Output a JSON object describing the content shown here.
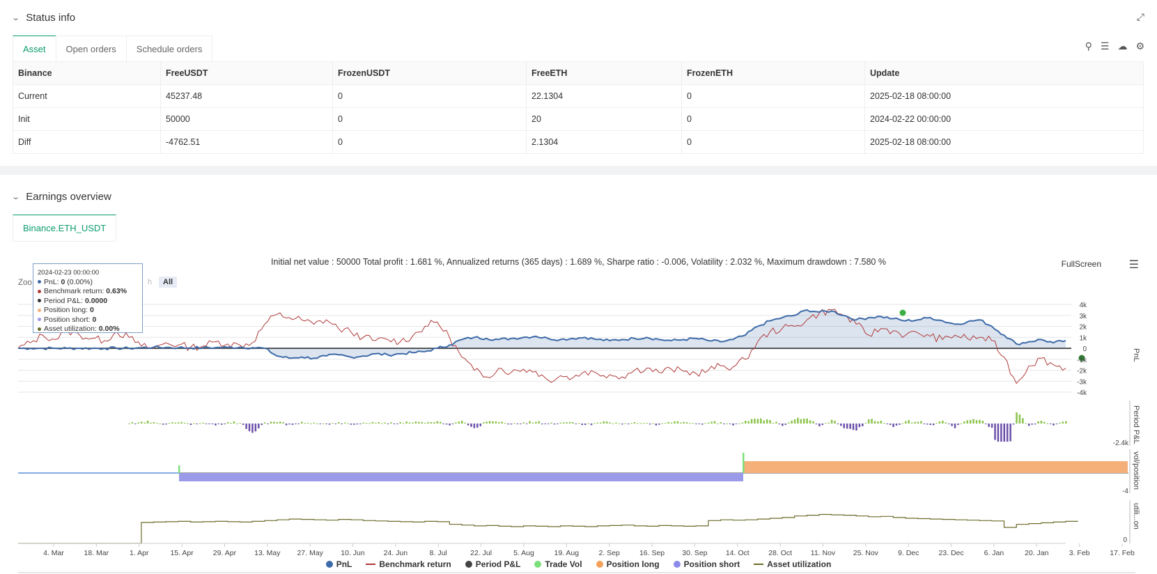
{
  "status": {
    "title": "Status info",
    "tabs": [
      "Asset",
      "Open orders",
      "Schedule orders"
    ],
    "columns": [
      "Binance",
      "FreeUSDT",
      "FrozenUSDT",
      "FreeETH",
      "FrozenETH",
      "Update"
    ],
    "rows": [
      {
        "label": "Current",
        "free_usdt": "45237.48",
        "frozen_usdt": "0",
        "free_eth": "22.1304",
        "frozen_eth": "0",
        "update": "2025-02-18 08:00:00"
      },
      {
        "label": "Init",
        "free_usdt": "50000",
        "frozen_usdt": "0",
        "free_eth": "20",
        "frozen_eth": "0",
        "update": "2024-02-22 00:00:00"
      },
      {
        "label": "Diff",
        "free_usdt": "-4762.51",
        "frozen_usdt": "0",
        "free_eth": "2.1304",
        "frozen_eth": "0",
        "update": "2025-02-18 08:00:00"
      }
    ]
  },
  "earnings": {
    "title": "Earnings overview",
    "tab": "Binance.ETH_USDT",
    "summary": "Initial net value : 50000 Total profit : 1.681 %, Annualized returns (365 days) : 1.689 %, Sharpe ratio : -0.006, Volatility : 2.032 %, Maximum drawdown : 7.580 %",
    "fullscreen": "FullScreen",
    "zoom_label": "Zoo",
    "zoom_h": "h",
    "zoom_all": "All"
  },
  "tooltip": {
    "date": "2024-02-23 00:00:00",
    "pnl_label": "PnL: ",
    "pnl_value": "0",
    "pnl_pct": " (0.00%)",
    "bench_label": "Benchmark return: ",
    "bench_value": "0.63%",
    "period_label": "Period P&L: ",
    "period_value": "0.0000",
    "long_label": "Position long: ",
    "long_value": "0",
    "short_label": "Position short: ",
    "short_value": "0",
    "util_label": "Asset utilization: ",
    "util_value": "0.00%"
  },
  "axes": {
    "pnl_ticks": [
      "4k",
      "3k",
      "2k",
      "1k",
      "0",
      "-1k",
      "-2k",
      "-3k",
      "-4k"
    ],
    "pnl_title": "PnL",
    "period_title": "Period P&L",
    "period_min": "-2.4k",
    "pos_title": "vol/position",
    "pos_min": "-4",
    "util_title": "utili...on",
    "util_zero": "0",
    "x_labels": [
      "4. Mar",
      "18. Mar",
      "1. Apr",
      "15. Apr",
      "29. Apr",
      "13. May",
      "27. May",
      "10. Jun",
      "24. Jun",
      "8. Jul",
      "22. Jul",
      "5. Aug",
      "19. Aug",
      "2. Sep",
      "16. Sep",
      "30. Sep",
      "14. Oct",
      "28. Oct",
      "11. Nov",
      "25. Nov",
      "9. Dec",
      "23. Dec",
      "6. Jan",
      "20. Jan",
      "3. Feb",
      "17. Feb"
    ]
  },
  "legend": [
    "PnL",
    "Benchmark return",
    "Period P&L",
    "Trade Vol",
    "Position long",
    "Position short",
    "Asset utilization"
  ],
  "colors": {
    "pnl": "#3d6aa8",
    "benchmark": "#b03a3a",
    "period_pos": "#8bc34a",
    "period_neg": "#6a4fa8",
    "long": "#f5b07a",
    "short": "#9a9ae8",
    "util": "#6b6b2a",
    "accent": "#0a9c6e"
  },
  "chart_data": [
    {
      "type": "line",
      "title": "PnL / Benchmark return",
      "x_range": [
        "2024-02-22",
        "2025-02-18"
      ],
      "ylim": [
        -4000,
        4000
      ],
      "series": [
        {
          "name": "PnL",
          "values": [
            0,
            0,
            0,
            0,
            0,
            0,
            0,
            0,
            0,
            0,
            50,
            100,
            80,
            60,
            40,
            50,
            60,
            80,
            100,
            60,
            0,
            -700,
            -900,
            -800,
            -900,
            -700,
            -600,
            -800,
            -700,
            -500,
            -600,
            -500,
            -400,
            -300,
            0,
            300,
            800,
            1000,
            900,
            800,
            900,
            1000,
            1100,
            900,
            800,
            900,
            1000,
            800,
            700,
            800,
            900,
            1000,
            800,
            700,
            800,
            900,
            700,
            600,
            800,
            1200,
            2000,
            2500,
            2800,
            3000,
            3500,
            3300,
            3400,
            3000,
            2600,
            2800,
            2900,
            2700,
            2500,
            2600,
            2800,
            2500,
            2200,
            2400,
            2600,
            2000,
            1200,
            400,
            600,
            800,
            500,
            700
          ]
        },
        {
          "name": "Benchmark return",
          "values": [
            0,
            500,
            1200,
            800,
            1600,
            1200,
            900,
            700,
            1500,
            1000,
            200,
            0,
            500,
            300,
            100,
            200,
            600,
            400,
            300,
            500,
            2200,
            3100,
            2800,
            2600,
            2200,
            2600,
            1800,
            1500,
            1000,
            700,
            800,
            600,
            1100,
            2000,
            2400,
            1000,
            -800,
            -2000,
            -2600,
            -1800,
            -2200,
            -1900,
            -2100,
            -2900,
            -2500,
            -2700,
            -2100,
            -2300,
            -2400,
            -2600,
            -2000,
            -1800,
            -2200,
            -1900,
            -2100,
            -2300,
            -2000,
            -1600,
            -1700,
            -1000,
            600,
            1500,
            1800,
            2000,
            2600,
            3200,
            3500,
            3000,
            2200,
            1200,
            1800,
            1600,
            1200,
            1400,
            1100,
            800,
            1200,
            900,
            1000,
            700,
            -800,
            -3200,
            -1600,
            -900,
            -1500,
            -1800
          ]
        }
      ]
    },
    {
      "type": "bar",
      "title": "Period P&L",
      "ylim": [
        -2400,
        800
      ],
      "values": [
        0,
        0,
        0,
        0,
        0,
        0,
        0,
        0,
        0,
        0,
        80,
        60,
        -40,
        50,
        -60,
        40,
        -80,
        60,
        30,
        -400,
        50,
        60,
        -40,
        80,
        40,
        -30,
        60,
        -50,
        40,
        30,
        -20,
        60,
        40,
        30,
        100,
        -80,
        120,
        -200,
        80,
        60,
        -40,
        50,
        70,
        -30,
        40,
        60,
        -60,
        40,
        50,
        -40,
        60,
        30,
        -50,
        40,
        70,
        -30,
        40,
        60,
        -80,
        120,
        200,
        150,
        -100,
        180,
        220,
        -120,
        160,
        -200,
        -300,
        180,
        120,
        -150,
        100,
        80,
        -60,
        120,
        -200,
        140,
        160,
        -180,
        -2200,
        600,
        -100,
        120,
        -80,
        100
      ]
    },
    {
      "type": "area",
      "title": "Trade Vol / Position",
      "series": [
        {
          "name": "Position long",
          "segments": [
            {
              "from": "2024-10-14",
              "to": "2025-02-18",
              "value": 1
            }
          ]
        },
        {
          "name": "Position short",
          "segments": [
            {
              "from": "2024-04-15",
              "to": "2024-10-14",
              "value": -1
            }
          ]
        },
        {
          "name": "Trade Vol",
          "points": [
            {
              "x": "2024-04-15",
              "value": 1
            },
            {
              "x": "2024-10-14",
              "value": 2
            }
          ]
        }
      ]
    },
    {
      "type": "line",
      "title": "Asset utilization",
      "series": [
        {
          "name": "Asset utilization",
          "values": [
            0,
            0,
            0,
            0,
            0,
            0,
            0,
            0,
            0,
            0,
            55,
            56,
            57,
            58,
            56,
            57,
            58,
            57,
            56,
            58,
            60,
            62,
            64,
            63,
            62,
            61,
            63,
            62,
            60,
            59,
            58,
            57,
            56,
            58,
            57,
            50,
            48,
            46,
            47,
            45,
            44,
            46,
            45,
            44,
            46,
            45,
            44,
            46,
            47,
            48,
            46,
            45,
            47,
            46,
            45,
            46,
            60,
            62,
            61,
            62,
            64,
            66,
            68,
            72,
            74,
            76,
            75,
            74,
            72,
            70,
            71,
            68,
            66,
            65,
            64,
            63,
            62,
            61,
            60,
            59,
            42,
            50,
            52,
            54,
            56,
            58
          ]
        }
      ]
    }
  ]
}
